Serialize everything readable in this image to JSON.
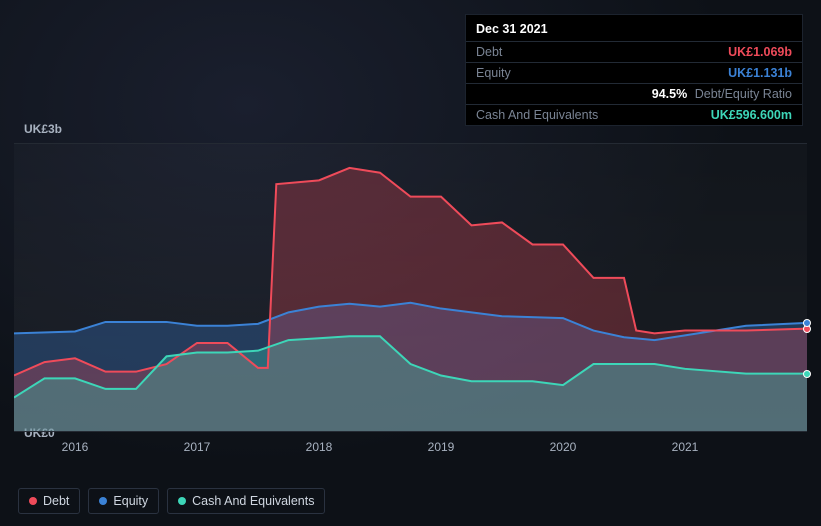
{
  "tooltip": {
    "date": "Dec 31 2021",
    "rows": {
      "debt": {
        "label": "Debt",
        "value": "UK£1.069b"
      },
      "equity": {
        "label": "Equity",
        "value": "UK£1.131b"
      },
      "ratio": {
        "label": "Debt/Equity Ratio",
        "value": "94.5%"
      },
      "cash": {
        "label": "Cash And Equivalents",
        "value": "UK£596.600m"
      }
    }
  },
  "chart": {
    "type": "area",
    "background_color": "#0d1117",
    "panel_bg": "rgba(255,255,255,0.04)",
    "border_color": "#242a33",
    "y_axis": {
      "min": 0,
      "max": 3,
      "top_label": "UK£3b",
      "bottom_label": "UK£0",
      "label_fontsize": 12
    },
    "x_axis": {
      "min": 2015.5,
      "max": 2022.0,
      "ticks": [
        2016,
        2017,
        2018,
        2019,
        2020,
        2021
      ],
      "tick_labels": [
        "2016",
        "2017",
        "2018",
        "2019",
        "2020",
        "2021"
      ],
      "label_fontsize": 12
    },
    "series": {
      "debt": {
        "name": "Debt",
        "stroke": "#ef4b5a",
        "fill": "#ef4b5a",
        "fill_opacity": 0.28,
        "line_width": 2,
        "x": [
          2015.5,
          2015.75,
          2016.0,
          2016.25,
          2016.5,
          2016.75,
          2017.0,
          2017.25,
          2017.5,
          2017.58,
          2017.65,
          2018.0,
          2018.25,
          2018.5,
          2018.75,
          2019.0,
          2019.25,
          2019.5,
          2019.75,
          2020.0,
          2020.25,
          2020.5,
          2020.6,
          2020.75,
          2021.0,
          2021.5,
          2022.0
        ],
        "y": [
          0.58,
          0.72,
          0.76,
          0.62,
          0.62,
          0.7,
          0.92,
          0.92,
          0.66,
          0.66,
          2.58,
          2.62,
          2.75,
          2.7,
          2.45,
          2.45,
          2.15,
          2.18,
          1.95,
          1.95,
          1.6,
          1.6,
          1.05,
          1.02,
          1.05,
          1.05,
          1.07
        ]
      },
      "equity": {
        "name": "Equity",
        "stroke": "#3b82d6",
        "fill": "#3b82d6",
        "fill_opacity": 0.3,
        "line_width": 2,
        "x": [
          2015.5,
          2016.0,
          2016.25,
          2016.75,
          2017.0,
          2017.25,
          2017.5,
          2017.75,
          2018.0,
          2018.25,
          2018.5,
          2018.75,
          2019.0,
          2019.5,
          2020.0,
          2020.25,
          2020.5,
          2020.75,
          2021.0,
          2021.5,
          2022.0
        ],
        "y": [
          1.02,
          1.04,
          1.14,
          1.14,
          1.1,
          1.1,
          1.12,
          1.24,
          1.3,
          1.33,
          1.3,
          1.34,
          1.28,
          1.2,
          1.18,
          1.05,
          0.98,
          0.95,
          1.0,
          1.1,
          1.13
        ]
      },
      "cash": {
        "name": "Cash And Equivalents",
        "stroke": "#3dd6b8",
        "fill": "#3dd6b8",
        "fill_opacity": 0.3,
        "line_width": 2,
        "x": [
          2015.5,
          2015.75,
          2016.0,
          2016.25,
          2016.5,
          2016.75,
          2017.0,
          2017.25,
          2017.5,
          2017.75,
          2018.0,
          2018.25,
          2018.5,
          2018.75,
          2019.0,
          2019.25,
          2019.5,
          2019.75,
          2020.0,
          2020.25,
          2020.5,
          2020.75,
          2021.0,
          2021.5,
          2022.0
        ],
        "y": [
          0.35,
          0.55,
          0.55,
          0.44,
          0.44,
          0.78,
          0.82,
          0.82,
          0.84,
          0.95,
          0.97,
          0.99,
          0.99,
          0.7,
          0.58,
          0.52,
          0.52,
          0.52,
          0.48,
          0.7,
          0.7,
          0.7,
          0.65,
          0.6,
          0.6
        ]
      }
    },
    "end_markers": [
      {
        "series": "debt",
        "x": 2022.0,
        "y": 1.07,
        "color": "#ef4b5a"
      },
      {
        "series": "equity",
        "x": 2022.0,
        "y": 1.13,
        "color": "#3b82d6"
      },
      {
        "series": "cash",
        "x": 2022.0,
        "y": 0.6,
        "color": "#3dd6b8"
      }
    ],
    "legend": [
      {
        "key": "debt",
        "label": "Debt",
        "color": "#ef4b5a"
      },
      {
        "key": "equity",
        "label": "Equity",
        "color": "#3b82d6"
      },
      {
        "key": "cash",
        "label": "Cash And Equivalents",
        "color": "#3dd6b8"
      }
    ]
  }
}
